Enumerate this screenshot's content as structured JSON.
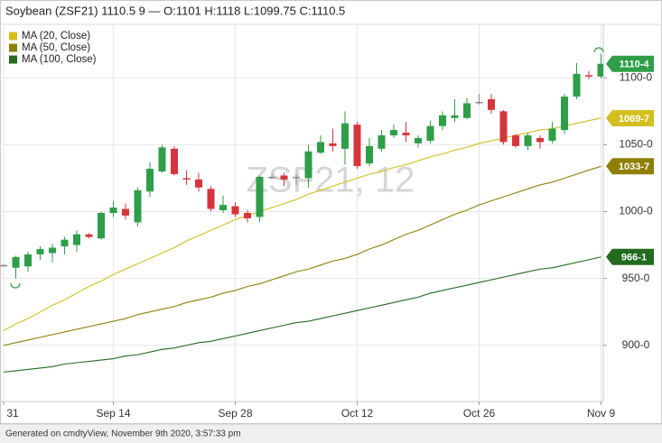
{
  "chart_data": {
    "type": "candlestick",
    "title": "Soybean (ZSF21) 1110.5 9 — O:1101 H:1118 L:1099.75 C:1110.5",
    "watermark": "ZSF21, 12",
    "footer": "Generated on cmdtyView, November 9th 2020, 3:57:33 pm",
    "categories": [
      "31",
      null,
      null,
      null,
      null,
      null,
      null,
      null,
      null,
      "Sep 14",
      null,
      null,
      null,
      null,
      null,
      null,
      null,
      null,
      null,
      "Sep 28",
      null,
      null,
      null,
      null,
      null,
      null,
      null,
      null,
      null,
      "Oct 12",
      null,
      null,
      null,
      null,
      null,
      null,
      null,
      null,
      null,
      "Oct 26",
      null,
      null,
      null,
      null,
      null,
      null,
      null,
      null,
      null,
      "Nov 9"
    ],
    "candles": {
      "open": [
        960,
        958,
        959,
        968,
        969,
        974,
        975,
        983,
        980,
        999,
        1002,
        992,
        1015,
        1030,
        1047,
        1025,
        1024,
        1017,
        1001,
        1004,
        999,
        996,
        1026,
        1027,
        1026,
        1025,
        1044,
        1051,
        1047,
        1065,
        1036,
        1047,
        1057,
        1059,
        1051,
        1053,
        1064,
        1070,
        1070,
        1082,
        1084,
        1075,
        1057,
        1049,
        1055,
        1053,
        1061,
        1086,
        1102,
        1101
      ],
      "high": [
        961,
        967,
        970,
        974,
        976,
        981,
        986,
        984,
        1000,
        1008,
        1006,
        1018,
        1037,
        1050,
        1049,
        1031,
        1029,
        1019,
        1012,
        1007,
        1001,
        1027,
        1028,
        1029,
        1028,
        1050,
        1057,
        1062,
        1075,
        1067,
        1055,
        1061,
        1065,
        1067,
        1057,
        1068,
        1075,
        1084,
        1085,
        1088,
        1088,
        1076,
        1058,
        1059,
        1057,
        1067,
        1088,
        1111,
        1105,
        1118
      ],
      "low": [
        959,
        950,
        955,
        964,
        962,
        968,
        970,
        980,
        979,
        996,
        994,
        989,
        1011,
        1029,
        1027,
        1020,
        1015,
        1000,
        999,
        996,
        992,
        992,
        1024,
        1019,
        1020,
        1018,
        1043,
        1045,
        1035,
        1032,
        1034,
        1045,
        1055,
        1052,
        1048,
        1051,
        1061,
        1067,
        1069,
        1080,
        1073,
        1050,
        1048,
        1046,
        1047,
        1051,
        1058,
        1084,
        1099,
        1099.75
      ],
      "close": [
        960,
        966,
        968,
        972,
        973,
        979,
        983,
        981,
        999,
        1003,
        997,
        1016,
        1032,
        1048,
        1028,
        1024,
        1018,
        1002,
        1005,
        998,
        995,
        1026,
        1026,
        1024,
        1026,
        1045,
        1052,
        1049,
        1066,
        1034,
        1049,
        1057,
        1061,
        1057,
        1055,
        1064,
        1072,
        1072,
        1081,
        1082,
        1076,
        1052,
        1049,
        1057,
        1052,
        1062,
        1086,
        1103,
        1101,
        1110.5
      ],
      "up_color": "#2e9e48",
      "down_color": "#d6353d",
      "flat_color": "#8a8a8a",
      "last": {
        "value": 1110.5,
        "label": "1110-4"
      }
    },
    "series": [
      {
        "name": "MA (20, Close)",
        "color": "#d2bf1e",
        "values": [
          911,
          916,
          920,
          925,
          930,
          934,
          939,
          944,
          948,
          953,
          957,
          961,
          965,
          969,
          973,
          978,
          982,
          986,
          990,
          994,
          997,
          1000,
          1003,
          1006,
          1009,
          1013,
          1016,
          1019,
          1022,
          1025,
          1028,
          1030,
          1033,
          1035,
          1038,
          1041,
          1043,
          1046,
          1048,
          1051,
          1053,
          1055,
          1057,
          1059,
          1061,
          1062,
          1064,
          1066,
          1068,
          1069.875
        ],
        "last": {
          "value": 1069.875,
          "label": "1069-7"
        }
      },
      {
        "name": "MA (50, Close)",
        "color": "#8f7f06",
        "values": [
          900,
          902,
          904,
          906,
          908,
          910,
          912,
          914,
          916,
          918,
          920,
          923,
          925,
          927,
          929,
          932,
          934,
          936,
          939,
          941,
          944,
          946,
          949,
          952,
          955,
          957,
          960,
          963,
          965,
          968,
          972,
          975,
          979,
          983,
          986,
          990,
          994,
          998,
          1001,
          1005,
          1008,
          1011,
          1014,
          1017,
          1020,
          1022,
          1025,
          1028,
          1031,
          1033.875
        ],
        "last": {
          "value": 1033.875,
          "label": "1033-7"
        }
      },
      {
        "name": "MA (100, Close)",
        "color": "#236b1f",
        "values": [
          880,
          881,
          882,
          883,
          884,
          886,
          887,
          888,
          889,
          890,
          892,
          893,
          895,
          897,
          898,
          900,
          902,
          903,
          905,
          907,
          909,
          911,
          913,
          915,
          917,
          918,
          920,
          922,
          924,
          926,
          928,
          930,
          932,
          934,
          936,
          939,
          941,
          943,
          945,
          947,
          949,
          951,
          953,
          955,
          957,
          958,
          960,
          962,
          964,
          966.125
        ],
        "last": {
          "value": 966.125,
          "label": "966-1"
        }
      }
    ],
    "ylim": [
      858,
      1140
    ],
    "yticks": [
      {
        "value": 900,
        "label": "900-0"
      },
      {
        "value": 950,
        "label": "950-0"
      },
      {
        "value": 1000,
        "label": "1000-0"
      },
      {
        "value": 1050,
        "label": "1050-0"
      },
      {
        "value": 1100,
        "label": "1100-0"
      }
    ],
    "grid": true
  }
}
